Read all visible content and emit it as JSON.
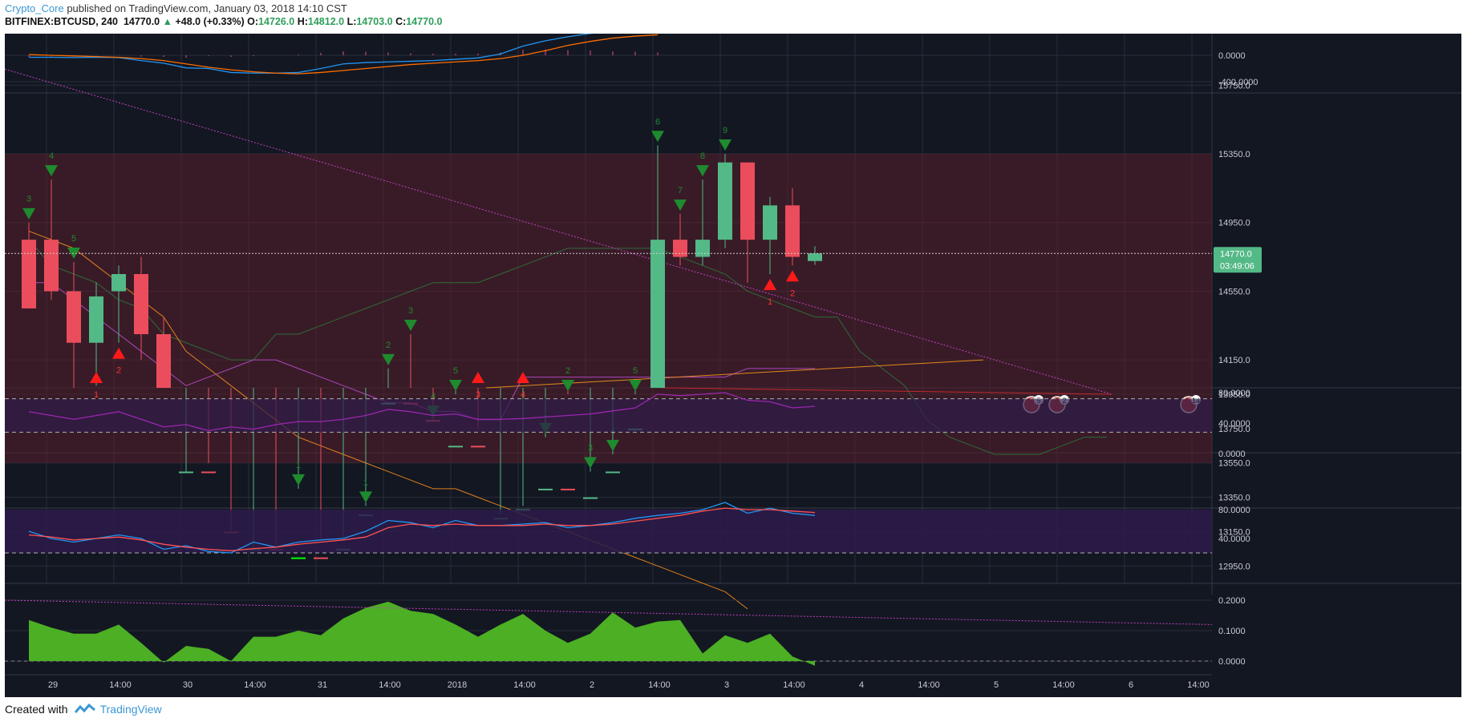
{
  "header": {
    "author": "Crypto_Core",
    "published_text": " published on TradingView.com, January 03, 2018 14:10 CST",
    "symbol": "BITFINEX:BTCUSD, 240",
    "last": "14770.0",
    "change": "+48.0 (+0.33%)",
    "o_label": "O:",
    "o": "14726.0",
    "h_label": "H:",
    "h": "14812.0",
    "l_label": "L:",
    "l": "14703.0",
    "c_label": "C:",
    "c": "14770.0"
  },
  "footer": {
    "created_with": "Created with",
    "brand": "TradingView"
  },
  "colors": {
    "bg": "#131722",
    "up": "#53b987",
    "down": "#eb4d5c",
    "grid": "#2a2e39"
  },
  "chart_data": [
    {
      "type": "line",
      "name": "MACD",
      "yaxis_ticks": [
        "0.0000",
        "-400.0000"
      ],
      "series": [
        {
          "name": "macd",
          "color": "#2196f3",
          "values": [
            -30,
            -30,
            -35,
            -30,
            -35,
            -80,
            -120,
            -190,
            -200,
            -260,
            -270,
            -270,
            -260,
            -200,
            -130,
            -110,
            -100,
            -90,
            -80,
            -60,
            -40,
            20,
            140,
            220,
            280,
            330,
            360,
            380,
            380
          ]
        },
        {
          "name": "signal",
          "color": "#ff6d00",
          "values": [
            10,
            0,
            -10,
            -20,
            -30,
            -50,
            -80,
            -130,
            -180,
            -220,
            -250,
            -270,
            -280,
            -260,
            -230,
            -200,
            -170,
            -140,
            -120,
            -100,
            -80,
            -50,
            0,
            70,
            150,
            210,
            260,
            290,
            310
          ]
        }
      ]
    },
    {
      "type": "candlestick",
      "name": "BTCUSD 240",
      "yaxis_ticks": [
        "15750.0",
        "15350.0",
        "14950.0",
        "14550.0",
        "14150.0",
        "13950.0",
        "13750.0",
        "13550.0",
        "13350.0",
        "13150.0",
        "12950.0"
      ],
      "last_price_label": "14770.0",
      "countdown_label": "03:49:06",
      "candles": [
        {
          "o": 14850,
          "h": 14950,
          "l": 14450,
          "c": 14450
        },
        {
          "o": 14850,
          "h": 15200,
          "l": 14500,
          "c": 14550
        },
        {
          "o": 14550,
          "h": 14720,
          "l": 13950,
          "c": 14250
        },
        {
          "o": 14250,
          "h": 14600,
          "l": 14000,
          "c": 14520
        },
        {
          "o": 14550,
          "h": 14700,
          "l": 14250,
          "c": 14650
        },
        {
          "o": 14650,
          "h": 14750,
          "l": 14150,
          "c": 14300
        },
        {
          "o": 14300,
          "h": 14400,
          "l": 12700,
          "c": 13300
        },
        {
          "o": 13300,
          "h": 13500,
          "l": 12700,
          "c": 13500
        },
        {
          "o": 13500,
          "h": 13550,
          "l": 13000,
          "c": 13150
        },
        {
          "o": 13150,
          "h": 13150,
          "l": 12800,
          "c": 12800
        },
        {
          "o": 12850,
          "h": 13050,
          "l": 12800,
          "c": 13050
        },
        {
          "o": 13050,
          "h": 13050,
          "l": 12800,
          "c": 12800
        },
        {
          "o": 12850,
          "h": 13400,
          "l": 12700,
          "c": 13000
        },
        {
          "o": 13000,
          "h": 13100,
          "l": 12850,
          "c": 12900
        },
        {
          "o": 12900,
          "h": 13100,
          "l": 12800,
          "c": 13050
        },
        {
          "o": 13050,
          "h": 13300,
          "l": 12900,
          "c": 13250
        },
        {
          "o": 13250,
          "h": 14100,
          "l": 13100,
          "c": 13900
        },
        {
          "o": 13900,
          "h": 14300,
          "l": 13600,
          "c": 13800
        },
        {
          "o": 13800,
          "h": 13800,
          "l": 13300,
          "c": 13400
        },
        {
          "o": 13400,
          "h": 13950,
          "l": 13350,
          "c": 13650
        },
        {
          "o": 13650,
          "h": 13750,
          "l": 13200,
          "c": 13200
        },
        {
          "o": 13200,
          "h": 13250,
          "l": 13150,
          "c": 13230
        },
        {
          "o": 13220,
          "h": 13300,
          "l": 13100,
          "c": 13280
        },
        {
          "o": 13250,
          "h": 13700,
          "l": 13150,
          "c": 13400
        },
        {
          "o": 13400,
          "h": 13950,
          "l": 13250,
          "c": 13300
        },
        {
          "o": 13300,
          "h": 13500,
          "l": 12900,
          "c": 13350
        },
        {
          "o": 13350,
          "h": 13600,
          "l": 13300,
          "c": 13500
        },
        {
          "o": 13500,
          "h": 13950,
          "l": 13450,
          "c": 13750
        },
        {
          "o": 13700,
          "h": 15400,
          "l": 13700,
          "c": 14850
        },
        {
          "o": 14850,
          "h": 15000,
          "l": 14700,
          "c": 14750
        },
        {
          "o": 14750,
          "h": 15200,
          "l": 14700,
          "c": 14850
        },
        {
          "o": 14850,
          "h": 15350,
          "l": 14800,
          "c": 15300
        },
        {
          "o": 15300,
          "h": 15300,
          "l": 14600,
          "c": 14850
        },
        {
          "o": 14850,
          "h": 15100,
          "l": 14650,
          "c": 15050
        },
        {
          "o": 15050,
          "h": 15150,
          "l": 14700,
          "c": 14750
        },
        {
          "o": 14726,
          "h": 14812,
          "l": 14703,
          "c": 14770
        }
      ],
      "td_labels_down": [
        {
          "i": 0,
          "t": "3"
        },
        {
          "i": 1,
          "t": "4"
        },
        {
          "i": 2,
          "t": "5"
        },
        {
          "i": 12,
          "t": "1"
        },
        {
          "i": 15,
          "t": "1"
        },
        {
          "i": 16,
          "t": "2"
        },
        {
          "i": 17,
          "t": "3"
        },
        {
          "i": 18,
          "t": "4"
        },
        {
          "i": 19,
          "t": "5"
        },
        {
          "i": 23,
          "t": "1"
        },
        {
          "i": 24,
          "t": "2"
        },
        {
          "i": 25,
          "t": "3"
        },
        {
          "i": 26,
          "t": "4"
        },
        {
          "i": 27,
          "t": "5"
        },
        {
          "i": 28,
          "t": "6"
        },
        {
          "i": 29,
          "t": "7"
        },
        {
          "i": 30,
          "t": "8"
        },
        {
          "i": 31,
          "t": "9"
        }
      ],
      "td_labels_up": [
        {
          "i": 3,
          "t": "1"
        },
        {
          "i": 4,
          "t": "2"
        },
        {
          "i": 20,
          "t": "3"
        },
        {
          "i": 22,
          "t": "4"
        },
        {
          "i": 33,
          "t": "1"
        },
        {
          "i": 34,
          "t": "2"
        }
      ]
    },
    {
      "type": "line",
      "name": "RSI",
      "yaxis_ticks": [
        "80.0000",
        "40.0000",
        "0.0000"
      ],
      "series": [
        {
          "name": "rsi",
          "color": "#9c27b0",
          "values": [
            55,
            50,
            45,
            50,
            55,
            45,
            35,
            38,
            30,
            35,
            32,
            38,
            42,
            42,
            45,
            50,
            58,
            55,
            50,
            52,
            45,
            45,
            46,
            48,
            50,
            52,
            56,
            60,
            78,
            76,
            78,
            80,
            70,
            68,
            60,
            62
          ]
        }
      ]
    },
    {
      "type": "line",
      "name": "Stochastic RSI",
      "yaxis_ticks": [
        "80.0000",
        "40.0000"
      ],
      "series": [
        {
          "name": "k",
          "color": "#2196f3",
          "values": [
            50,
            40,
            35,
            40,
            45,
            40,
            25,
            30,
            22,
            20,
            35,
            28,
            35,
            38,
            40,
            50,
            65,
            62,
            55,
            65,
            58,
            58,
            60,
            62,
            55,
            58,
            62,
            68,
            72,
            75,
            80,
            90,
            75,
            82,
            75,
            72
          ]
        },
        {
          "name": "d",
          "color": "#ff5252",
          "values": [
            45,
            42,
            38,
            40,
            42,
            38,
            32,
            28,
            25,
            23,
            26,
            28,
            32,
            35,
            38,
            42,
            55,
            60,
            58,
            60,
            58,
            58,
            58,
            60,
            58,
            58,
            60,
            64,
            68,
            72,
            78,
            82,
            80,
            80,
            78,
            76
          ]
        }
      ]
    },
    {
      "type": "area",
      "name": "Oscillator",
      "yaxis_ticks": [
        "0.2000",
        "0.1000",
        "0.0000"
      ],
      "series": [
        {
          "name": "osc",
          "color": "#4caf24",
          "values": [
            0.135,
            0.11,
            0.09,
            0.09,
            0.12,
            0.06,
            -0.005,
            0.05,
            0.04,
            0.0,
            0.08,
            0.08,
            0.1,
            0.085,
            0.14,
            0.175,
            0.195,
            0.165,
            0.155,
            0.12,
            0.08,
            0.12,
            0.155,
            0.1,
            0.06,
            0.09,
            0.16,
            0.11,
            0.13,
            0.135,
            0.025,
            0.085,
            0.06,
            0.09,
            0.015,
            -0.015
          ]
        }
      ]
    }
  ],
  "xaxis_labels": [
    "29",
    "14:00",
    "30",
    "14:00",
    "31",
    "14:00",
    "2018",
    "14:00",
    "2",
    "14:00",
    "3",
    "14:00",
    "4",
    "14:00",
    "5",
    "14:00",
    "6",
    "14:00"
  ],
  "events": [
    {
      "label": "5"
    },
    {
      "label": "2"
    },
    {
      "label": "14"
    }
  ]
}
